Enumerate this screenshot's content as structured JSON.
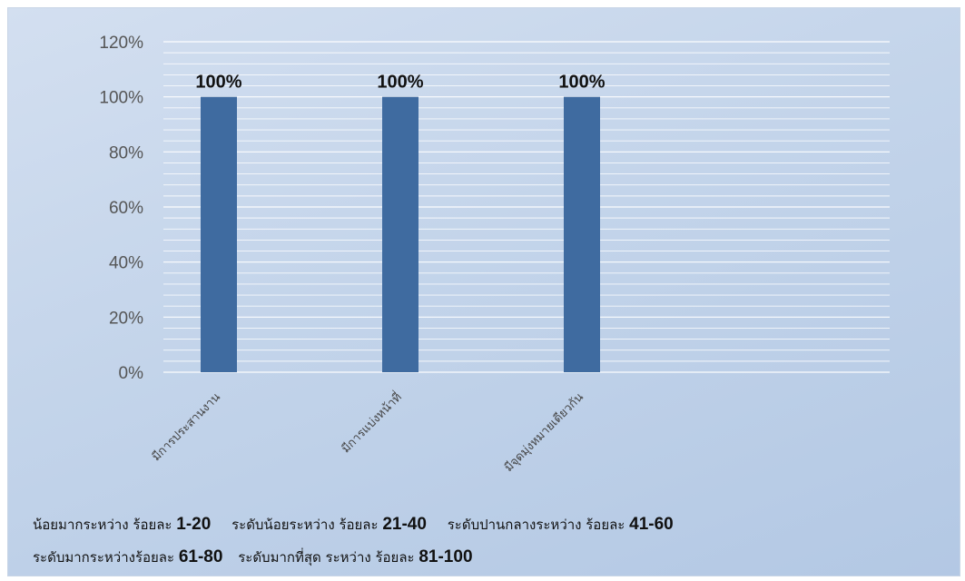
{
  "chart_data": {
    "type": "bar",
    "categories": [
      "มีการประสานงาน",
      "มีการแบ่งหน้าที่",
      "มีจุดมุ่งหมายเดียวกัน"
    ],
    "values": [
      100,
      100,
      100
    ],
    "data_labels": [
      "100%",
      "100%",
      "100%"
    ],
    "ylim": [
      0,
      120
    ],
    "yticks": [
      "0%",
      "20%",
      "40%",
      "60%",
      "80%",
      "100%",
      "120%"
    ],
    "grid": true,
    "colors": {
      "bar": "#3f6ba0",
      "gridline": "#ffffff"
    }
  },
  "legend": {
    "line1": [
      {
        "text": "น้อยมากระหว่าง ร้อยละ ",
        "range": "1-20"
      },
      {
        "text": "ระดับน้อยระหว่าง ร้อยละ ",
        "range": "21-40"
      },
      {
        "text": "ระดับปานกลางระหว่าง  ร้อยละ ",
        "range": "41-60"
      }
    ],
    "line2": [
      {
        "text": "ระดับมากระหว่างร้อยละ ",
        "range": "61-80"
      },
      {
        "text": "ระดับมากที่สุด ระหว่าง  ร้อยละ ",
        "range": "81-100"
      }
    ]
  }
}
